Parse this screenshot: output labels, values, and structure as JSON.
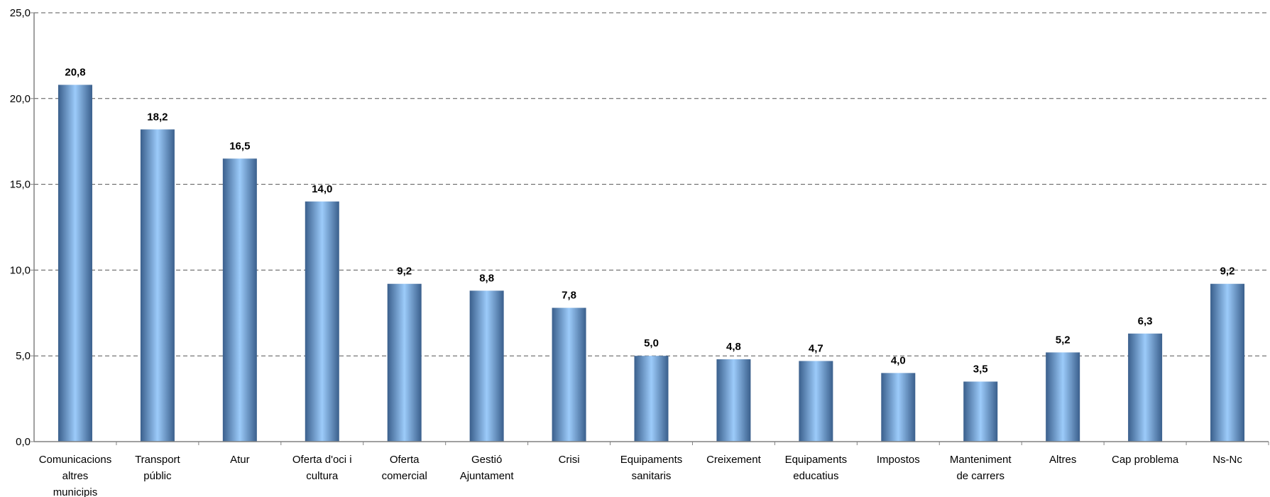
{
  "chart_data": {
    "type": "bar",
    "categories": [
      [
        "Comunicacions",
        "altres",
        "municipis"
      ],
      [
        "Transport",
        "públic"
      ],
      [
        "Atur"
      ],
      [
        "Oferta d'oci i",
        "cultura"
      ],
      [
        "Oferta",
        "comercial"
      ],
      [
        "Gestió",
        "Ajuntament"
      ],
      [
        "Crisi"
      ],
      [
        "Equipaments",
        "sanitaris"
      ],
      [
        "Creixement"
      ],
      [
        "Equipaments",
        "educatius"
      ],
      [
        "Impostos"
      ],
      [
        "Manteniment",
        "de carrers"
      ],
      [
        "Altres"
      ],
      [
        "Cap problema"
      ],
      [
        "Ns-Nc"
      ]
    ],
    "values": [
      20.8,
      18.2,
      16.5,
      14.0,
      9.2,
      8.8,
      7.8,
      5.0,
      4.8,
      4.7,
      4.0,
      3.5,
      5.2,
      6.3,
      9.2
    ],
    "value_labels": [
      "20,8",
      "18,2",
      "16,5",
      "14,0",
      "9,2",
      "8,8",
      "7,8",
      "5,0",
      "4,8",
      "4,7",
      "4,0",
      "3,5",
      "5,2",
      "6,3",
      "9,2"
    ],
    "y_ticks": [
      0,
      5,
      10,
      15,
      20,
      25
    ],
    "y_tick_labels": [
      "0,0",
      "5,0",
      "10,0",
      "15,0",
      "20,0",
      "25,0"
    ],
    "ylim": [
      0,
      25
    ],
    "grid": true,
    "legend": "none",
    "colors": {
      "bar_edge": "#3a5f8c",
      "bar_mid": "#9ccbfa",
      "grid": "#555555",
      "axis": "#808080"
    }
  }
}
